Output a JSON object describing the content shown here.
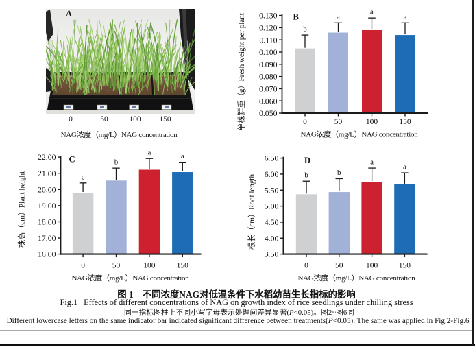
{
  "page": {
    "background": "#ffffff",
    "right_border_color": "#1c1c1c",
    "thin_rule_color": "#a9a9a9",
    "thick_rule_color": "#0d0d0d"
  },
  "colors": {
    "bar_gray": "#cfd0d2",
    "bar_lightblue": "#a2b1d8",
    "bar_red": "#ce2130",
    "bar_blue": "#1d6cb4",
    "axis": "#1a1a1a",
    "grass_palette": [
      "#76ad43",
      "#88bd51",
      "#9cc967",
      "#63a238",
      "#92c25e",
      "#a8d177",
      "#578f31",
      "#80b74b"
    ],
    "soil_dark": "#5e452e",
    "soil_light": "#7c5c40",
    "tray_black": "#161616",
    "chamber_wall": "#ededeb"
  },
  "figure": {
    "panel_a": {
      "label": "A",
      "tick_labels": [
        "0",
        "50",
        "100",
        "150"
      ],
      "xlabel": "NAG浓度（mg/L）NAG concentration"
    },
    "caption": {
      "title_zh_label": "图 1",
      "title_zh_text": "不同浓度NAG对低温条件下水稻幼苗生长指标的影响",
      "title_en_label": "Fig.1",
      "title_en_text": "Effects of different concentrations of NAG on growth index of rice seedlings under chilling stress",
      "note_zh_pre": "同一指标图柱上不同小写字母表示处理间差异显著(",
      "note_zh_p": "P",
      "note_zh_post": "<0.05)。图2~图6同",
      "note_en_pre": "Different lowercase letters on the same indicator bar indicated significant difference between treatments(",
      "note_en_p": "P",
      "note_en_post": "<0.05). The same was applied in Fig.2-Fig.6"
    }
  },
  "chart_data": [
    {
      "panel": "B",
      "type": "bar",
      "categories": [
        "0",
        "50",
        "100",
        "150"
      ],
      "values": [
        0.103,
        0.116,
        0.118,
        0.114
      ],
      "errors_up": [
        0.011,
        0.008,
        0.01,
        0.01
      ],
      "sig_letters": [
        "b",
        "a",
        "a",
        "a"
      ],
      "bar_colors": [
        "#cfd0d2",
        "#a2b1d8",
        "#ce2130",
        "#1d6cb4"
      ],
      "ylabel": "单株鲜重（g）Fresh weight per plant",
      "xlabel": "NAG浓度（mg/L）NAG concentration",
      "ylim": [
        0.05,
        0.13
      ],
      "yticks": [
        "0.050",
        "0.060",
        "0.070",
        "0.080",
        "0.090",
        "0.100",
        "0.110",
        "0.120",
        "0.130"
      ],
      "grid": false,
      "legend": null
    },
    {
      "panel": "C",
      "type": "bar",
      "categories": [
        "0",
        "50",
        "100",
        "150"
      ],
      "values": [
        19.8,
        20.55,
        21.22,
        21.07
      ],
      "errors_up": [
        0.6,
        0.77,
        0.69,
        0.61
      ],
      "sig_letters": [
        "c",
        "b",
        "a",
        "a"
      ],
      "bar_colors": [
        "#cfd0d2",
        "#a2b1d8",
        "#ce2130",
        "#1d6cb4"
      ],
      "ylabel": "株高（cm）Plant height",
      "xlabel": "NAG浓度（mg/L）NAG concentration",
      "ylim": [
        16.0,
        22.0
      ],
      "yticks": [
        "16.00",
        "17.00",
        "18.00",
        "19.00",
        "20.00",
        "21.00",
        "22.00"
      ],
      "grid": false,
      "legend": null
    },
    {
      "panel": "D",
      "type": "bar",
      "categories": [
        "0",
        "50",
        "100",
        "150"
      ],
      "values": [
        5.37,
        5.44,
        5.76,
        5.68
      ],
      "errors_up": [
        0.41,
        0.42,
        0.43,
        0.36
      ],
      "sig_letters": [
        "b",
        "b",
        "a",
        "a"
      ],
      "bar_colors": [
        "#cfd0d2",
        "#a2b1d8",
        "#ce2130",
        "#1d6cb4"
      ],
      "ylabel": "根长（cm）Root length",
      "xlabel": "NAG浓度（mg/L）NAG concentration",
      "ylim": [
        3.5,
        6.5
      ],
      "yticks": [
        "3.50",
        "4.00",
        "4.50",
        "5.00",
        "5.50",
        "6.00",
        "6.50"
      ],
      "grid": false,
      "legend": null
    }
  ]
}
